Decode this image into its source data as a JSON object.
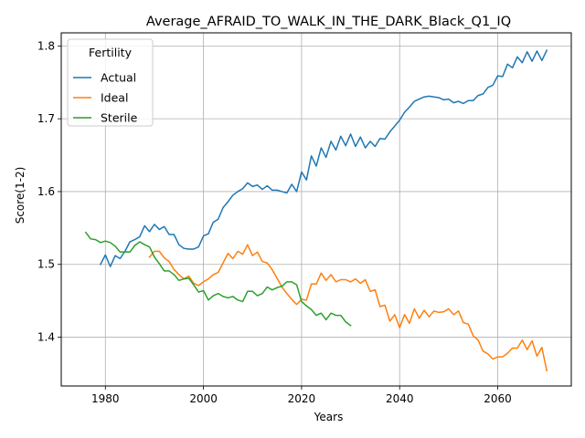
{
  "chart_data": {
    "type": "line",
    "title": "Average_AFRAID_TO_WALK_IN_THE_DARK_Black_Q1_IQ",
    "xlabel": "Years",
    "ylabel": "Score(1-2)",
    "xlim": [
      1971,
      2075
    ],
    "ylim": [
      1.333,
      1.818
    ],
    "xticks": [
      1980,
      2000,
      2020,
      2040,
      2060
    ],
    "yticks": [
      1.4,
      1.5,
      1.6,
      1.7,
      1.8
    ],
    "grid": true,
    "legend": {
      "title": "Fertility",
      "placement": "top-left"
    },
    "series": [
      {
        "name": "Actual",
        "color": "#1f77b4",
        "x": [
          1979,
          1980,
          1981,
          1982,
          1983,
          1984,
          1985,
          1986,
          1987,
          1988,
          1989,
          1990,
          1991,
          1992,
          1993,
          1994,
          1995,
          1996,
          1997,
          1998,
          1999,
          2000,
          2001,
          2002,
          2003,
          2004,
          2005,
          2006,
          2007,
          2008,
          2009,
          2010,
          2011,
          2012,
          2013,
          2014,
          2015,
          2016,
          2017,
          2018,
          2019,
          2020,
          2021,
          2022,
          2023,
          2024,
          2025,
          2026,
          2027,
          2028,
          2029,
          2030,
          2031,
          2032,
          2033,
          2034,
          2035,
          2036,
          2037,
          2038,
          2039,
          2040,
          2041,
          2042,
          2043,
          2044,
          2045,
          2046,
          2047,
          2048,
          2049,
          2050,
          2051,
          2052,
          2053,
          2054,
          2055,
          2056,
          2057,
          2058,
          2059,
          2060,
          2061,
          2062,
          2063,
          2064,
          2065,
          2066,
          2067,
          2068,
          2069,
          2070
        ],
        "values": [
          1.5,
          1.513,
          1.497,
          1.512,
          1.508,
          1.518,
          1.531,
          1.534,
          1.538,
          1.553,
          1.545,
          1.555,
          1.548,
          1.552,
          1.541,
          1.541,
          1.527,
          1.522,
          1.521,
          1.521,
          1.524,
          1.539,
          1.542,
          1.558,
          1.562,
          1.578,
          1.586,
          1.595,
          1.6,
          1.604,
          1.612,
          1.607,
          1.609,
          1.603,
          1.608,
          1.602,
          1.602,
          1.6,
          1.598,
          1.61,
          1.6,
          1.627,
          1.616,
          1.649,
          1.635,
          1.66,
          1.647,
          1.669,
          1.657,
          1.676,
          1.663,
          1.679,
          1.662,
          1.675,
          1.66,
          1.669,
          1.662,
          1.673,
          1.672,
          1.682,
          1.69,
          1.698,
          1.709,
          1.716,
          1.724,
          1.727,
          1.73,
          1.731,
          1.73,
          1.729,
          1.726,
          1.727,
          1.722,
          1.724,
          1.721,
          1.725,
          1.725,
          1.732,
          1.734,
          1.743,
          1.746,
          1.759,
          1.758,
          1.775,
          1.77,
          1.785,
          1.777,
          1.792,
          1.779,
          1.793,
          1.78,
          1.794
        ]
      },
      {
        "name": "Ideal",
        "color": "#ff7f0e",
        "x": [
          1989,
          1990,
          1991,
          1992,
          1993,
          1994,
          1995,
          1996,
          1997,
          1998,
          1999,
          2000,
          2001,
          2002,
          2003,
          2004,
          2005,
          2006,
          2007,
          2008,
          2009,
          2010,
          2011,
          2012,
          2013,
          2014,
          2015,
          2016,
          2017,
          2018,
          2019,
          2020,
          2021,
          2022,
          2023,
          2024,
          2025,
          2026,
          2027,
          2028,
          2029,
          2030,
          2031,
          2032,
          2033,
          2034,
          2035,
          2036,
          2037,
          2038,
          2039,
          2040,
          2041,
          2042,
          2043,
          2044,
          2045,
          2046,
          2047,
          2048,
          2049,
          2050,
          2051,
          2052,
          2053,
          2054,
          2055,
          2056,
          2057,
          2058,
          2059,
          2060,
          2061,
          2062,
          2063,
          2064,
          2065,
          2066,
          2067,
          2068,
          2069,
          2070
        ],
        "values": [
          1.51,
          1.518,
          1.518,
          1.509,
          1.504,
          1.493,
          1.486,
          1.48,
          1.484,
          1.474,
          1.471,
          1.476,
          1.48,
          1.486,
          1.489,
          1.502,
          1.515,
          1.508,
          1.518,
          1.514,
          1.527,
          1.512,
          1.517,
          1.504,
          1.502,
          1.493,
          1.481,
          1.469,
          1.46,
          1.452,
          1.445,
          1.452,
          1.451,
          1.473,
          1.473,
          1.488,
          1.478,
          1.486,
          1.476,
          1.479,
          1.479,
          1.476,
          1.48,
          1.474,
          1.479,
          1.463,
          1.465,
          1.442,
          1.444,
          1.422,
          1.431,
          1.413,
          1.431,
          1.419,
          1.439,
          1.426,
          1.437,
          1.428,
          1.436,
          1.434,
          1.435,
          1.439,
          1.431,
          1.436,
          1.42,
          1.418,
          1.402,
          1.396,
          1.381,
          1.377,
          1.37,
          1.373,
          1.373,
          1.378,
          1.385,
          1.385,
          1.396,
          1.383,
          1.395,
          1.374,
          1.386,
          1.354
        ]
      },
      {
        "name": "Sterile",
        "color": "#2ca02c",
        "x": [
          1976,
          1977,
          1978,
          1979,
          1980,
          1981,
          1982,
          1983,
          1984,
          1985,
          1986,
          1987,
          1988,
          1989,
          1990,
          1991,
          1992,
          1993,
          1994,
          1995,
          1996,
          1997,
          1998,
          1999,
          2000,
          2001,
          2002,
          2003,
          2004,
          2005,
          2006,
          2007,
          2008,
          2009,
          2010,
          2011,
          2012,
          2013,
          2014,
          2015,
          2016,
          2017,
          2018,
          2019,
          2020,
          2021,
          2022,
          2023,
          2024,
          2025,
          2026,
          2027,
          2028,
          2029,
          2030
        ],
        "values": [
          1.544,
          1.535,
          1.534,
          1.53,
          1.532,
          1.53,
          1.525,
          1.517,
          1.517,
          1.517,
          1.526,
          1.531,
          1.527,
          1.524,
          1.51,
          1.501,
          1.491,
          1.491,
          1.486,
          1.478,
          1.48,
          1.481,
          1.472,
          1.462,
          1.464,
          1.451,
          1.457,
          1.46,
          1.456,
          1.454,
          1.456,
          1.451,
          1.449,
          1.463,
          1.463,
          1.457,
          1.46,
          1.469,
          1.465,
          1.468,
          1.47,
          1.476,
          1.476,
          1.472,
          1.449,
          1.443,
          1.438,
          1.43,
          1.433,
          1.424,
          1.433,
          1.43,
          1.43,
          1.421,
          1.416
        ]
      }
    ]
  }
}
